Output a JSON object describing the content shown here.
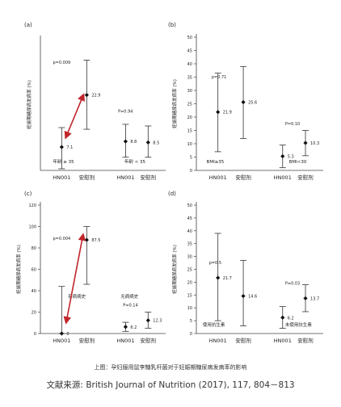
{
  "caption": "上图：孕妇服用鼠李糖乳杆菌对于妊娠期糖尿病发病率的影响",
  "source": "文献来源: British Journal of Nutrition (2017), 117, 804－813",
  "chart_data": [
    {
      "panel": "(a)",
      "type": "scatter",
      "ylabel": "妊娠期糖尿病发病率 (%)",
      "ylim": [
        0,
        40
      ],
      "yticks": [],
      "categories": [
        "HN001",
        "安慰剂",
        "HN001",
        "安慰剂"
      ],
      "groups": [
        "年龄 ≥ 35",
        "年龄 < 35"
      ],
      "points": [
        {
          "value": 7.1,
          "label": "7.1",
          "low": 0.5,
          "high": 13
        },
        {
          "value": 22.9,
          "label": "22.9",
          "low": 12.5,
          "high": 33.5
        },
        {
          "value": 8.8,
          "label": "8.8",
          "low": 4,
          "high": 14
        },
        {
          "value": 8.5,
          "label": "8.5",
          "low": 4,
          "high": 13.5
        }
      ],
      "annotations": [
        {
          "text": "p=0.009"
        },
        {
          "text": "P=0.94"
        }
      ],
      "arrow": true
    },
    {
      "panel": "(b)",
      "type": "scatter",
      "ylabel": "妊娠期糖尿病发病率 (%)",
      "ylim": [
        0,
        50
      ],
      "yticks": [
        "0",
        "5",
        "10",
        "15",
        "20",
        "25",
        "30",
        "35",
        "40",
        "45",
        "50"
      ],
      "categories": [
        "HN001",
        "安慰剂",
        "HN001",
        "安慰剂"
      ],
      "groups": [
        "BMI≥35",
        "BMI<30"
      ],
      "points": [
        {
          "value": 21.9,
          "label": "21.9",
          "low": 7,
          "high": 36.5
        },
        {
          "value": 25.6,
          "label": "25.6",
          "low": 12,
          "high": 39
        },
        {
          "value": 5.3,
          "label": "5.3",
          "low": 1,
          "high": 9.5
        },
        {
          "value": 10.3,
          "label": "10.3",
          "low": 5.5,
          "high": 15
        }
      ],
      "annotations": [
        {
          "text": "p=0.71"
        },
        {
          "text": "P=0.10"
        }
      ],
      "arrow": false
    },
    {
      "panel": "(c)",
      "type": "scatter",
      "ylabel": "妊娠期糖尿病发病率 (%)",
      "ylim": [
        0,
        120
      ],
      "yticks": [
        "0",
        "20",
        "40",
        "60",
        "80",
        "100",
        "120"
      ],
      "categories": [
        "HN001",
        "安慰剂",
        "HN001",
        "安慰剂"
      ],
      "groups": [
        "有病病史",
        "无病病史"
      ],
      "points": [
        {
          "value": 0,
          "label": "0",
          "low": 0,
          "high": 44
        },
        {
          "value": 87.5,
          "label": "87.5",
          "low": 46,
          "high": 100
        },
        {
          "value": 6.2,
          "label": "6.2",
          "low": 2,
          "high": 10.5
        },
        {
          "value": 12.3,
          "label": "12.3",
          "low": 5,
          "high": 20
        }
      ],
      "annotations": [
        {
          "text": "p=0.004"
        },
        {
          "text": "P=0.14"
        }
      ],
      "arrow": true
    },
    {
      "panel": "(d)",
      "type": "scatter",
      "ylabel": "妊娠期糖尿病发病率 (%)",
      "ylim": [
        0,
        50
      ],
      "yticks": [
        "0",
        "5",
        "10",
        "15",
        "20",
        "25",
        "30",
        "35",
        "40",
        "45",
        "50"
      ],
      "categories": [
        "HN001",
        "安慰剂",
        "HN001",
        "安慰剂"
      ],
      "groups": [
        "使用抗生素",
        "未使用抗生素"
      ],
      "points": [
        {
          "value": 21.7,
          "label": "21.7",
          "low": 5,
          "high": 39
        },
        {
          "value": 14.6,
          "label": "14.6",
          "low": 3,
          "high": 28.5
        },
        {
          "value": 6.2,
          "label": "6.2",
          "low": 2,
          "high": 10.5
        },
        {
          "value": 13.7,
          "label": "13.7",
          "low": 8.5,
          "high": 19
        }
      ],
      "annotations": [
        {
          "text": "p=0.5"
        },
        {
          "text": "P=0.03"
        }
      ],
      "arrow": false
    }
  ]
}
